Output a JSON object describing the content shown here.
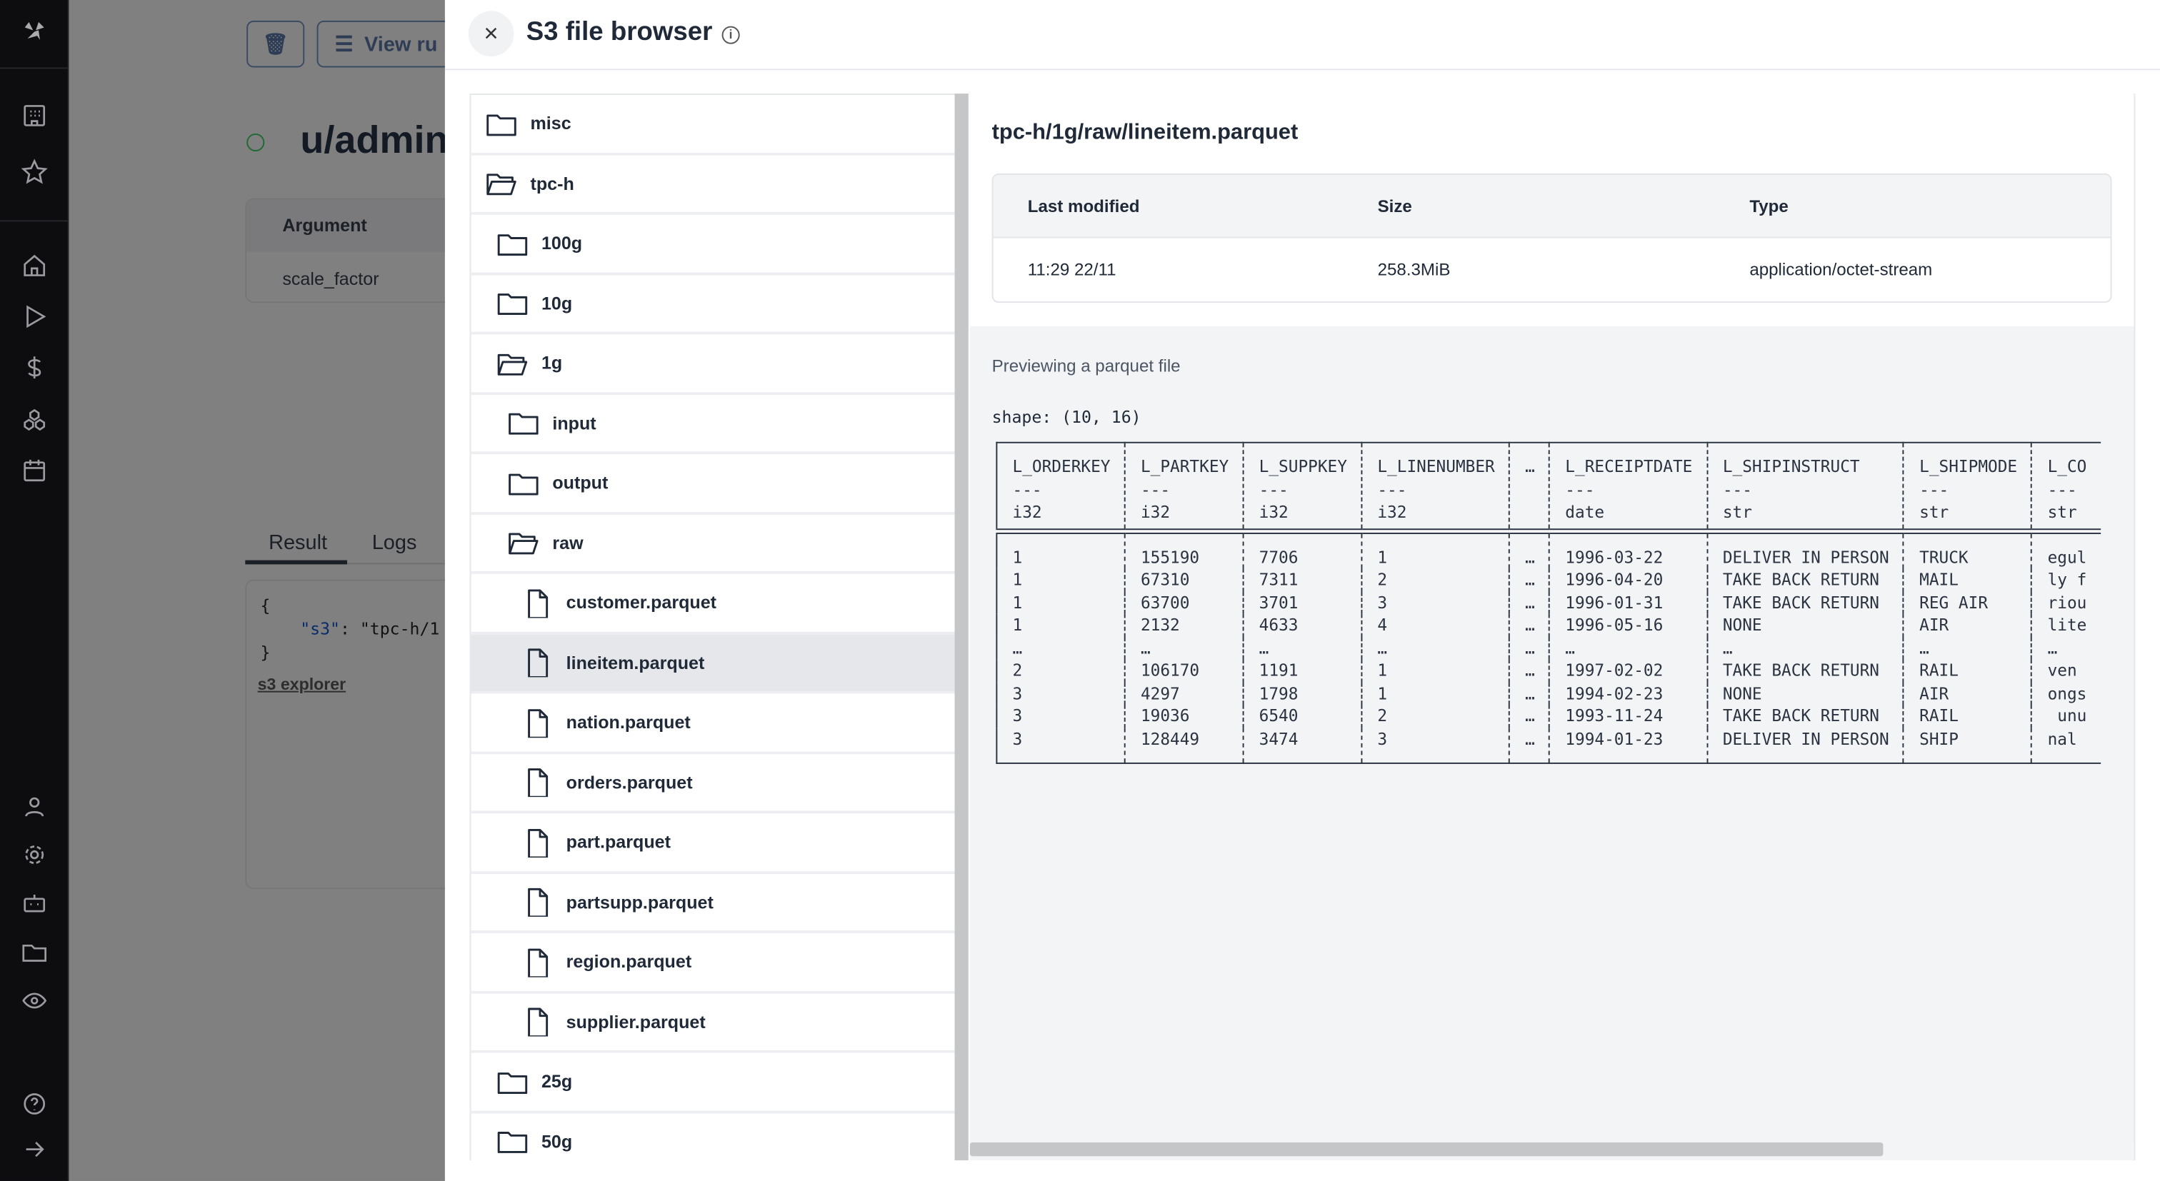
{
  "sidebar": {
    "top_icons": [
      "windmill-logo-icon",
      "building-icon",
      "star-icon"
    ],
    "nav_icons": [
      "home-icon",
      "play-icon",
      "dollar-icon",
      "cubes-icon",
      "calendar-icon"
    ],
    "bottom_icons": [
      "user-icon",
      "gear-icon",
      "bot-icon",
      "folder-icon",
      "eye-icon",
      "help-icon",
      "arrow-right-icon"
    ]
  },
  "background": {
    "view_runs_label": "View ru",
    "title": "u/admin",
    "argument_header": "Argument",
    "argument_value": "scale_factor",
    "tabs": [
      "Result",
      "Logs"
    ],
    "code_open": "{",
    "code_key": "\"s3\"",
    "code_val": ": \"tpc-h/1",
    "code_close": "}",
    "s3_explorer_link": "s3 explorer"
  },
  "drawer": {
    "title": "S3 file browser",
    "close_label": "×",
    "info_label": "i"
  },
  "tree": [
    {
      "label": "misc",
      "type": "folder",
      "depth": 0
    },
    {
      "label": "tpc-h",
      "type": "folder-open",
      "depth": 0
    },
    {
      "label": "100g",
      "type": "folder",
      "depth": 1
    },
    {
      "label": "10g",
      "type": "folder",
      "depth": 1
    },
    {
      "label": "1g",
      "type": "folder-open",
      "depth": 1
    },
    {
      "label": "input",
      "type": "folder",
      "depth": 2
    },
    {
      "label": "output",
      "type": "folder",
      "depth": 2
    },
    {
      "label": "raw",
      "type": "folder-open",
      "depth": 2
    },
    {
      "label": "customer.parquet",
      "type": "file",
      "depth": 3
    },
    {
      "label": "lineitem.parquet",
      "type": "file",
      "depth": 3,
      "selected": true
    },
    {
      "label": "nation.parquet",
      "type": "file",
      "depth": 3
    },
    {
      "label": "orders.parquet",
      "type": "file",
      "depth": 3
    },
    {
      "label": "part.parquet",
      "type": "file",
      "depth": 3
    },
    {
      "label": "partsupp.parquet",
      "type": "file",
      "depth": 3
    },
    {
      "label": "region.parquet",
      "type": "file",
      "depth": 3
    },
    {
      "label": "supplier.parquet",
      "type": "file",
      "depth": 3
    },
    {
      "label": "25g",
      "type": "folder",
      "depth": 1
    },
    {
      "label": "50g",
      "type": "folder",
      "depth": 1
    }
  ],
  "file": {
    "path": "tpc-h/1g/raw/lineitem.parquet",
    "headers": {
      "modified": "Last modified",
      "size": "Size",
      "type": "Type"
    },
    "modified": "11:29 22/11",
    "size": "258.3MiB",
    "type": "application/octet-stream"
  },
  "preview": {
    "label": "Previewing a parquet file",
    "shape": "shape: (10, 16)",
    "columns": [
      {
        "name": "L_ORDERKEY",
        "sep": "---",
        "dtype": "i32"
      },
      {
        "name": "L_PARTKEY",
        "sep": "---",
        "dtype": "i32"
      },
      {
        "name": "L_SUPPKEY",
        "sep": "---",
        "dtype": "i32"
      },
      {
        "name": "L_LINENUMBER",
        "sep": "---",
        "dtype": "i32"
      },
      {
        "name": "…",
        "sep": "",
        "dtype": ""
      },
      {
        "name": "L_RECEIPTDATE",
        "sep": "---",
        "dtype": "date"
      },
      {
        "name": "L_SHIPINSTRUCT",
        "sep": "---",
        "dtype": "str"
      },
      {
        "name": "L_SHIPMODE",
        "sep": "---",
        "dtype": "str"
      },
      {
        "name": "L_CO",
        "sep": "---",
        "dtype": "str"
      }
    ],
    "rows": [
      [
        "1",
        "155190",
        "7706",
        "1",
        "…",
        "1996-03-22",
        "DELIVER IN PERSON",
        "TRUCK",
        "egul"
      ],
      [
        "1",
        "67310",
        "7311",
        "2",
        "…",
        "1996-04-20",
        "TAKE BACK RETURN",
        "MAIL",
        "ly f"
      ],
      [
        "1",
        "63700",
        "3701",
        "3",
        "…",
        "1996-01-31",
        "TAKE BACK RETURN",
        "REG AIR",
        "riou"
      ],
      [
        "1",
        "2132",
        "4633",
        "4",
        "…",
        "1996-05-16",
        "NONE",
        "AIR",
        "lite"
      ],
      [
        "…",
        "…",
        "…",
        "…",
        "…",
        "…",
        "…",
        "…",
        "…"
      ],
      [
        "2",
        "106170",
        "1191",
        "1",
        "…",
        "1997-02-02",
        "TAKE BACK RETURN",
        "RAIL",
        "ven "
      ],
      [
        "3",
        "4297",
        "1798",
        "1",
        "…",
        "1994-02-23",
        "NONE",
        "AIR",
        "ongs"
      ],
      [
        "3",
        "19036",
        "6540",
        "2",
        "…",
        "1993-11-24",
        "TAKE BACK RETURN",
        "RAIL",
        " unu"
      ],
      [
        "3",
        "128449",
        "3474",
        "3",
        "…",
        "1994-01-23",
        "DELIVER IN PERSON",
        "SHIP",
        "nal "
      ]
    ]
  }
}
